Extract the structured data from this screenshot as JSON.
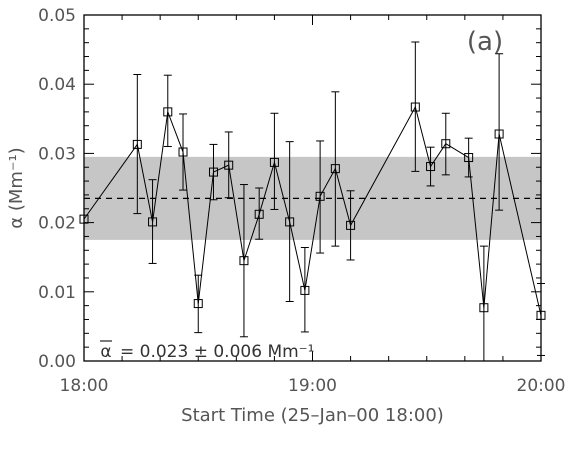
{
  "chart_data": {
    "type": "scatter",
    "panel_label": "(a)",
    "xlabel": "Start Time (25–Jan–00 18:00)",
    "ylabel": "α (Mm⁻¹)",
    "xlim": [
      "18:00",
      "20:00"
    ],
    "ylim": [
      0.0,
      0.05
    ],
    "x_ticks": [
      "18:00",
      "19:00",
      "20:00"
    ],
    "y_ticks": [
      "0.00",
      "0.01",
      "0.02",
      "0.03",
      "0.04",
      "0.05"
    ],
    "x_minutes_of_hour": [
      0,
      30,
      60,
      90,
      120
    ],
    "grid": false,
    "band": {
      "low": 0.0175,
      "high": 0.0295,
      "color": "#c6c6c6"
    },
    "mean_line": 0.0235,
    "annotation": {
      "symbol": "α",
      "text": "= 0.023 ± 0.006 Mm⁻¹"
    },
    "series": [
      {
        "marker": "open-square",
        "x": [
          "18:00",
          "18:14",
          "18:18",
          "18:22",
          "18:26",
          "18:30",
          "18:34",
          "18:38",
          "18:42",
          "18:46",
          "18:50",
          "18:54",
          "18:58",
          "19:02",
          "19:06",
          "19:10",
          "19:27",
          "19:31",
          "19:35",
          "19:41",
          "19:45",
          "19:49",
          "20:00"
        ],
        "y": [
          0.0205,
          0.0313,
          0.0201,
          0.036,
          0.0302,
          0.0083,
          0.0273,
          0.0283,
          0.0145,
          0.0212,
          0.0287,
          0.0201,
          0.0102,
          0.0238,
          0.0278,
          0.0196,
          0.0367,
          0.0281,
          0.0314,
          0.0294,
          0.0077,
          0.0328,
          0.0066
        ],
        "err_low": [
          null,
          0.0213,
          0.0141,
          0.031,
          0.0247,
          0.0041,
          0.0233,
          0.0236,
          0.0035,
          0.0176,
          0.0219,
          0.0086,
          0.0042,
          0.0156,
          0.0166,
          0.0146,
          0.0274,
          0.0253,
          0.0269,
          0.0266,
          0.0,
          0.0218,
          0.0008
        ],
        "err_high": [
          null,
          0.0414,
          0.0262,
          0.0413,
          0.0357,
          0.0124,
          0.0313,
          0.0331,
          0.0255,
          0.025,
          0.0358,
          0.0317,
          0.0164,
          0.0318,
          0.0389,
          0.0246,
          0.0461,
          0.0309,
          0.0358,
          0.0322,
          0.0166,
          0.0444,
          0.0112
        ]
      }
    ]
  }
}
